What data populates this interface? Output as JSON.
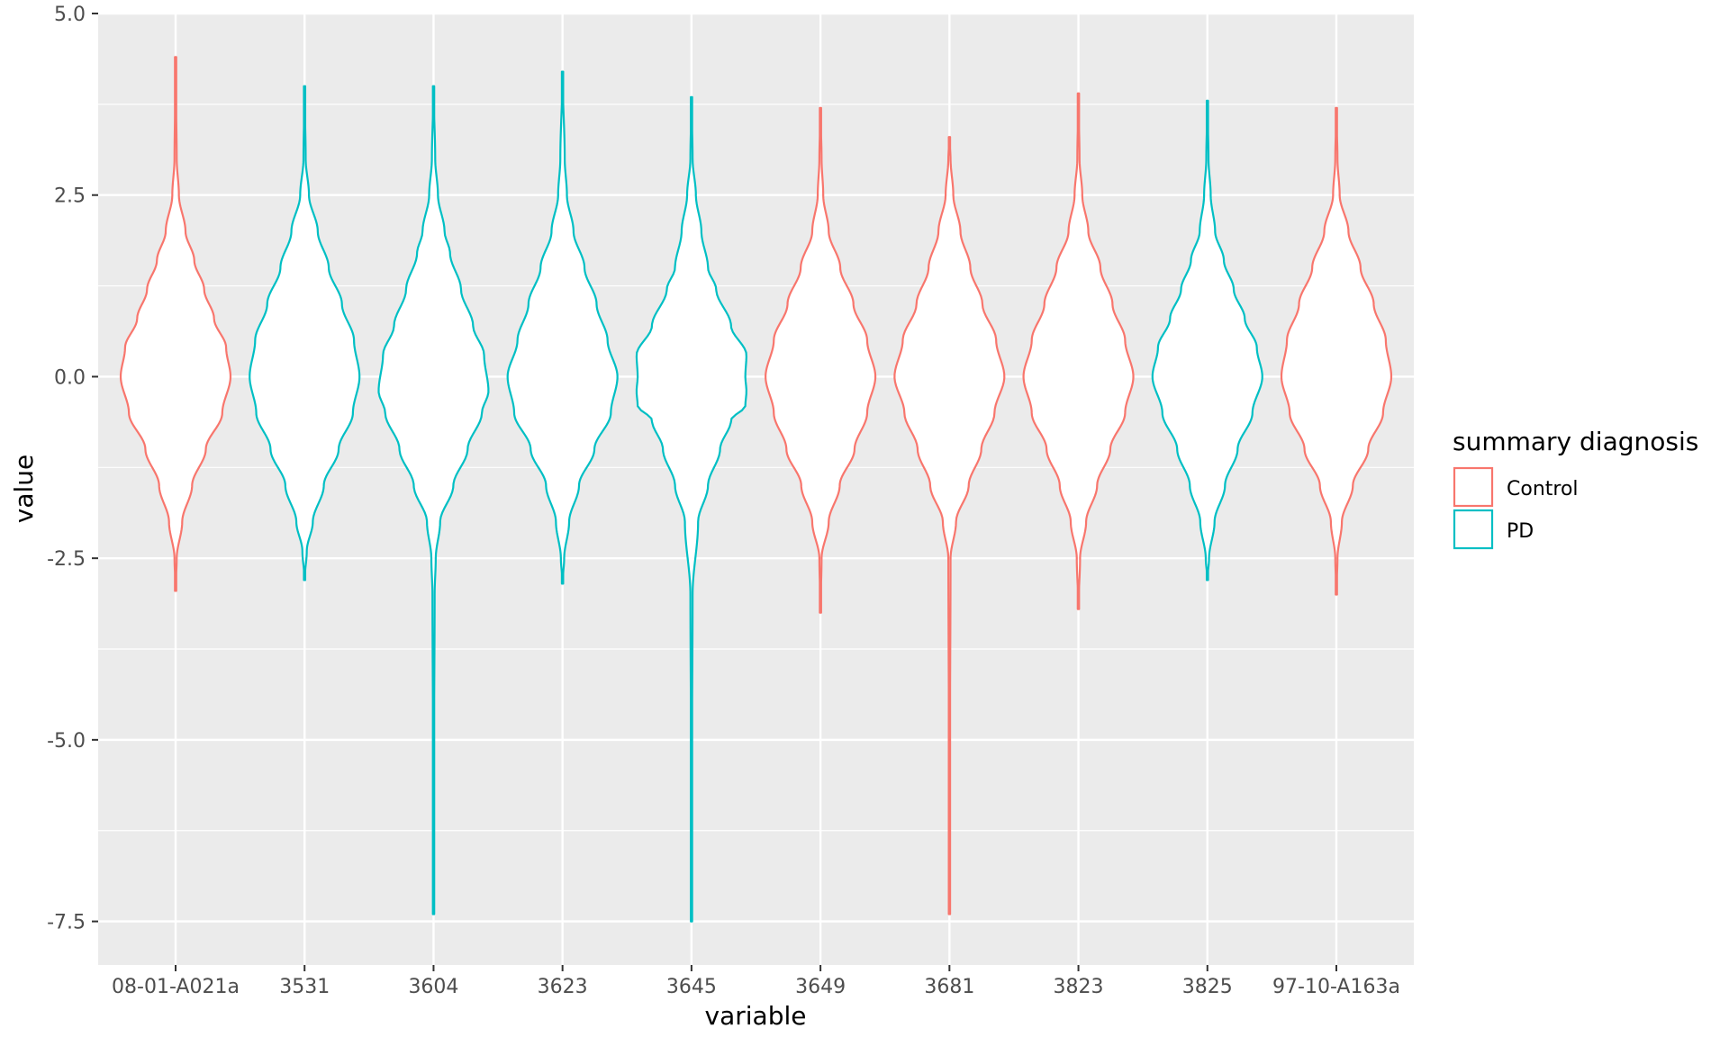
{
  "chart_data": {
    "type": "violin",
    "xlabel": "variable",
    "ylabel": "value",
    "ylim": [
      -8.1,
      5.0
    ],
    "yticks": [
      5.0,
      2.5,
      0.0,
      -2.5,
      -5.0,
      -7.5
    ],
    "ytick_labels": [
      "5.0",
      "2.5",
      "0.0",
      "-2.5",
      "-5.0",
      "-7.5"
    ],
    "grid": true,
    "legend": {
      "title": "summary diagnosis",
      "position": "right",
      "entries": [
        {
          "label": "Control",
          "color": "#F8766D"
        },
        {
          "label": "PD",
          "color": "#00BFC4"
        }
      ]
    },
    "categories": [
      "08-01-A021a",
      "3531",
      "3604",
      "3623",
      "3645",
      "3649",
      "3681",
      "3823",
      "3825",
      "97-10-A163a"
    ],
    "violins": [
      {
        "category": "08-01-A021a",
        "group": "Control",
        "min": -2.95,
        "max": 4.4,
        "profile": [
          [
            -2.95,
            0.0
          ],
          [
            -2.5,
            0.02
          ],
          [
            -2.0,
            0.12
          ],
          [
            -1.5,
            0.3
          ],
          [
            -1.0,
            0.55
          ],
          [
            -0.5,
            0.85
          ],
          [
            0.0,
            1.0
          ],
          [
            0.4,
            0.92
          ],
          [
            0.8,
            0.7
          ],
          [
            1.2,
            0.52
          ],
          [
            1.6,
            0.34
          ],
          [
            2.0,
            0.18
          ],
          [
            2.5,
            0.06
          ],
          [
            3.0,
            0.02
          ],
          [
            3.8,
            0.01
          ],
          [
            4.4,
            0.0
          ]
        ]
      },
      {
        "category": "3531",
        "group": "PD",
        "min": -2.8,
        "max": 4.0,
        "profile": [
          [
            -2.8,
            0.0
          ],
          [
            -2.4,
            0.04
          ],
          [
            -2.0,
            0.15
          ],
          [
            -1.5,
            0.35
          ],
          [
            -1.0,
            0.62
          ],
          [
            -0.5,
            0.88
          ],
          [
            0.0,
            1.0
          ],
          [
            0.5,
            0.9
          ],
          [
            1.0,
            0.68
          ],
          [
            1.5,
            0.44
          ],
          [
            2.0,
            0.24
          ],
          [
            2.5,
            0.08
          ],
          [
            3.0,
            0.02
          ],
          [
            4.0,
            0.0
          ]
        ]
      },
      {
        "category": "3604",
        "group": "PD",
        "min": -7.4,
        "max": 4.0,
        "profile": [
          [
            -7.4,
            0.0
          ],
          [
            -5.0,
            0.01
          ],
          [
            -3.0,
            0.02
          ],
          [
            -2.5,
            0.04
          ],
          [
            -2.0,
            0.12
          ],
          [
            -1.5,
            0.36
          ],
          [
            -1.0,
            0.62
          ],
          [
            -0.5,
            0.88
          ],
          [
            -0.2,
            1.0
          ],
          [
            0.3,
            0.92
          ],
          [
            0.7,
            0.72
          ],
          [
            1.2,
            0.5
          ],
          [
            1.7,
            0.3
          ],
          [
            2.0,
            0.2
          ],
          [
            2.5,
            0.08
          ],
          [
            3.0,
            0.03
          ],
          [
            4.0,
            0.0
          ]
        ]
      },
      {
        "category": "3623",
        "group": "PD",
        "min": -2.85,
        "max": 4.2,
        "profile": [
          [
            -2.85,
            0.0
          ],
          [
            -2.5,
            0.03
          ],
          [
            -2.0,
            0.12
          ],
          [
            -1.5,
            0.3
          ],
          [
            -1.0,
            0.58
          ],
          [
            -0.5,
            0.88
          ],
          [
            0.0,
            1.0
          ],
          [
            0.5,
            0.82
          ],
          [
            1.0,
            0.62
          ],
          [
            1.5,
            0.4
          ],
          [
            2.0,
            0.2
          ],
          [
            2.5,
            0.08
          ],
          [
            3.0,
            0.04
          ],
          [
            4.2,
            0.0
          ]
        ]
      },
      {
        "category": "3645",
        "group": "PD",
        "min": -7.5,
        "max": 3.85,
        "profile": [
          [
            -7.5,
            0.0
          ],
          [
            -5.0,
            0.01
          ],
          [
            -3.0,
            0.02
          ],
          [
            -2.0,
            0.12
          ],
          [
            -1.5,
            0.3
          ],
          [
            -1.0,
            0.52
          ],
          [
            -0.6,
            0.72
          ],
          [
            -0.4,
            0.98
          ],
          [
            -0.2,
            1.0
          ],
          [
            0.0,
            0.98
          ],
          [
            0.3,
            1.0
          ],
          [
            0.7,
            0.72
          ],
          [
            1.2,
            0.45
          ],
          [
            1.5,
            0.3
          ],
          [
            2.0,
            0.18
          ],
          [
            2.5,
            0.08
          ],
          [
            3.0,
            0.02
          ],
          [
            3.85,
            0.0
          ]
        ]
      },
      {
        "category": "3649",
        "group": "Control",
        "min": -3.25,
        "max": 3.7,
        "profile": [
          [
            -3.25,
            0.0
          ],
          [
            -2.5,
            0.02
          ],
          [
            -2.0,
            0.15
          ],
          [
            -1.5,
            0.35
          ],
          [
            -1.0,
            0.62
          ],
          [
            -0.5,
            0.85
          ],
          [
            0.0,
            1.0
          ],
          [
            0.5,
            0.85
          ],
          [
            1.0,
            0.6
          ],
          [
            1.5,
            0.36
          ],
          [
            2.0,
            0.15
          ],
          [
            2.5,
            0.05
          ],
          [
            3.0,
            0.02
          ],
          [
            3.7,
            0.0
          ]
        ]
      },
      {
        "category": "3681",
        "group": "Control",
        "min": -7.4,
        "max": 3.3,
        "profile": [
          [
            -7.4,
            0.0
          ],
          [
            -5.0,
            0.01
          ],
          [
            -2.5,
            0.02
          ],
          [
            -2.0,
            0.12
          ],
          [
            -1.5,
            0.35
          ],
          [
            -1.0,
            0.58
          ],
          [
            -0.5,
            0.82
          ],
          [
            0.0,
            1.0
          ],
          [
            0.5,
            0.85
          ],
          [
            1.0,
            0.6
          ],
          [
            1.5,
            0.38
          ],
          [
            2.0,
            0.2
          ],
          [
            2.5,
            0.07
          ],
          [
            3.0,
            0.02
          ],
          [
            3.3,
            0.0
          ]
        ]
      },
      {
        "category": "3823",
        "group": "Control",
        "min": -3.2,
        "max": 3.9,
        "profile": [
          [
            -3.2,
            0.0
          ],
          [
            -2.5,
            0.03
          ],
          [
            -2.0,
            0.14
          ],
          [
            -1.5,
            0.34
          ],
          [
            -1.0,
            0.58
          ],
          [
            -0.5,
            0.85
          ],
          [
            0.0,
            1.0
          ],
          [
            0.5,
            0.85
          ],
          [
            1.0,
            0.62
          ],
          [
            1.5,
            0.4
          ],
          [
            2.0,
            0.18
          ],
          [
            2.5,
            0.07
          ],
          [
            3.0,
            0.02
          ],
          [
            3.9,
            0.0
          ]
        ]
      },
      {
        "category": "3825",
        "group": "PD",
        "min": -2.8,
        "max": 3.8,
        "profile": [
          [
            -2.8,
            0.0
          ],
          [
            -2.5,
            0.03
          ],
          [
            -2.0,
            0.13
          ],
          [
            -1.5,
            0.32
          ],
          [
            -1.0,
            0.55
          ],
          [
            -0.5,
            0.82
          ],
          [
            0.0,
            1.0
          ],
          [
            0.4,
            0.9
          ],
          [
            0.8,
            0.68
          ],
          [
            1.2,
            0.48
          ],
          [
            1.6,
            0.3
          ],
          [
            2.0,
            0.14
          ],
          [
            2.5,
            0.06
          ],
          [
            3.0,
            0.02
          ],
          [
            3.8,
            0.0
          ]
        ]
      },
      {
        "category": "97-10-A163a",
        "group": "Control",
        "min": -3.0,
        "max": 3.7,
        "profile": [
          [
            -3.0,
            0.0
          ],
          [
            -2.5,
            0.02
          ],
          [
            -2.0,
            0.1
          ],
          [
            -1.5,
            0.3
          ],
          [
            -1.0,
            0.58
          ],
          [
            -0.5,
            0.85
          ],
          [
            0.0,
            1.0
          ],
          [
            0.5,
            0.9
          ],
          [
            1.0,
            0.68
          ],
          [
            1.5,
            0.44
          ],
          [
            2.0,
            0.22
          ],
          [
            2.5,
            0.06
          ],
          [
            3.0,
            0.02
          ],
          [
            3.7,
            0.0
          ]
        ]
      }
    ]
  }
}
